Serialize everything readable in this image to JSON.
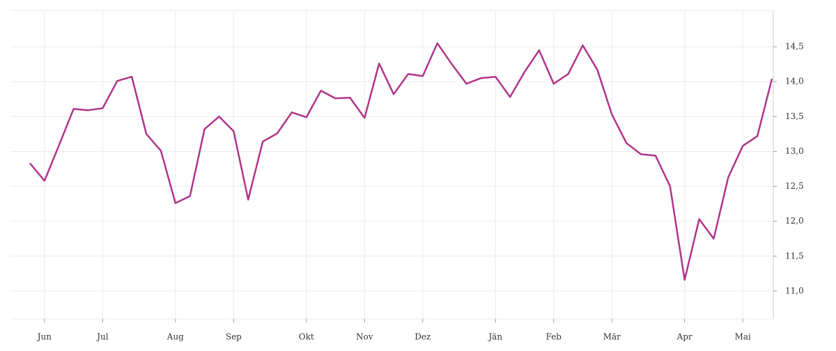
{
  "chart_data": {
    "type": "line",
    "categories": [
      null,
      "Jun",
      null,
      null,
      null,
      "Jul",
      null,
      null,
      null,
      null,
      "Aug",
      null,
      null,
      null,
      "Sep",
      null,
      null,
      null,
      null,
      "Okt",
      null,
      null,
      null,
      "Nov",
      null,
      null,
      null,
      "Dez",
      null,
      null,
      null,
      null,
      "Jän",
      null,
      null,
      null,
      "Feb",
      null,
      null,
      null,
      "Mär",
      null,
      null,
      null,
      null,
      "Apr",
      null,
      null,
      null,
      "Mai",
      null,
      null
    ],
    "series": [
      {
        "color": "#b0348a",
        "values": [
          12.83,
          12.58,
          13.09,
          13.61,
          13.59,
          13.62,
          14.01,
          14.07,
          13.25,
          13.01,
          12.26,
          12.36,
          13.32,
          13.5,
          13.29,
          12.31,
          13.14,
          13.26,
          13.56,
          13.49,
          13.87,
          13.76,
          13.77,
          13.48,
          14.26,
          13.82,
          14.11,
          14.08,
          14.55,
          14.25,
          13.97,
          14.05,
          14.07,
          13.78,
          14.14,
          14.45,
          13.97,
          14.11,
          14.52,
          14.17,
          13.53,
          13.12,
          12.96,
          12.94,
          12.5,
          11.16,
          12.03,
          11.75,
          12.63,
          13.08,
          13.22,
          14.04
        ]
      }
    ],
    "ylim": [
      10.6,
      15.02
    ],
    "yticks": [
      {
        "value": 11,
        "label": "11,0"
      },
      {
        "value": 11.5,
        "label": "11,5"
      },
      {
        "value": 12,
        "label": "12,0"
      },
      {
        "value": 12.5,
        "label": "12,5"
      },
      {
        "value": 13,
        "label": "13,0"
      },
      {
        "value": 13.5,
        "label": "13,5"
      },
      {
        "value": 14,
        "label": "14,0"
      },
      {
        "value": 14.5,
        "label": "14,5"
      }
    ],
    "grid": true
  }
}
